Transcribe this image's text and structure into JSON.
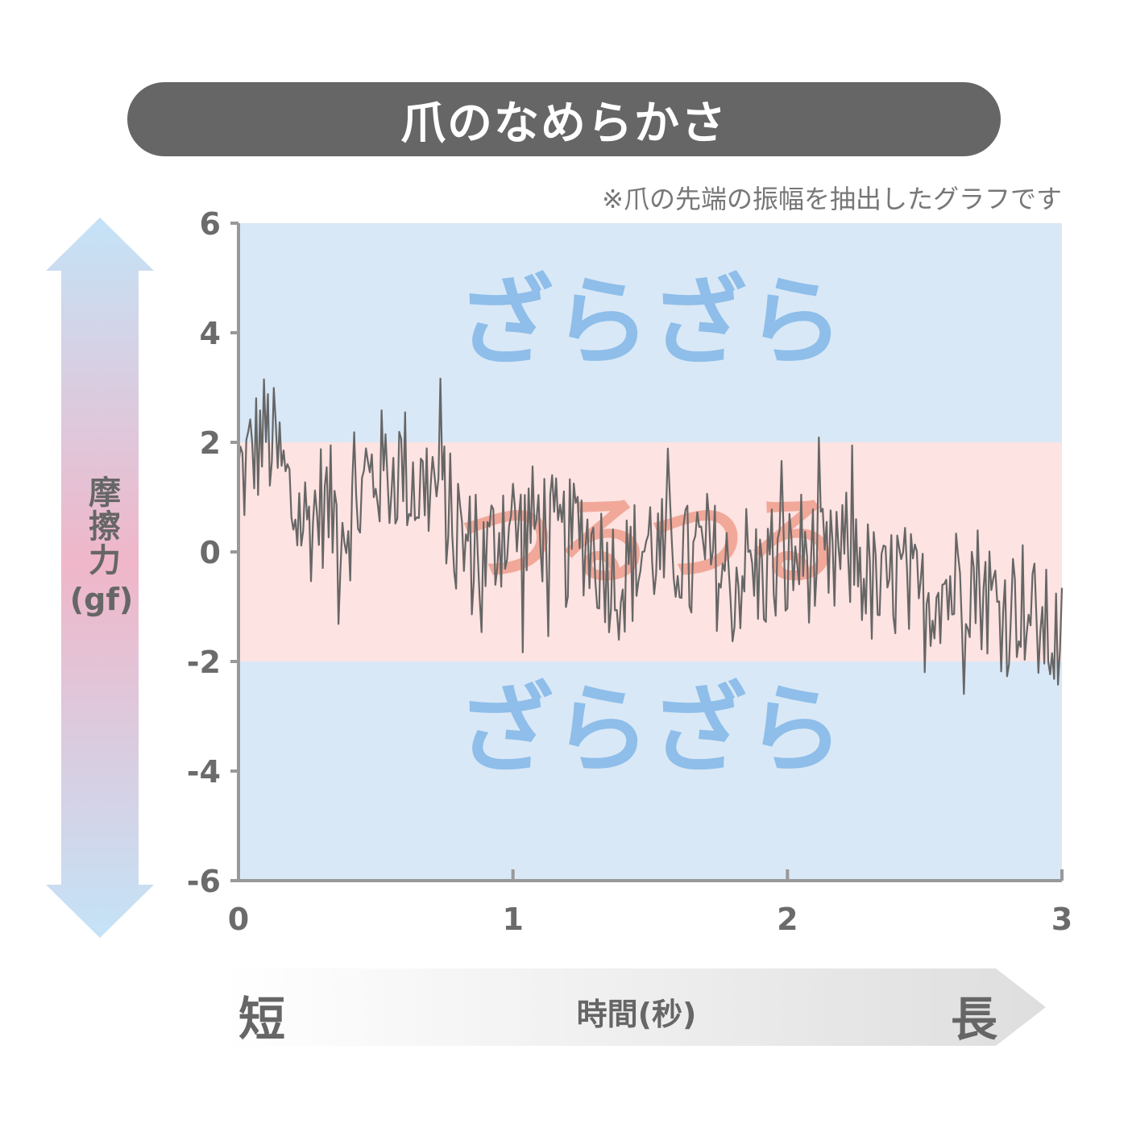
{
  "title": "爪のなめらかさ",
  "note": "※爪の先端の振幅を抽出したグラフです",
  "y_axis_label": "摩擦力",
  "y_axis_unit": "(gf)",
  "x_axis_label": "時間(秒)",
  "x_axis_short": "短",
  "x_axis_long": "長",
  "regions": {
    "rough_label": "ざらざら",
    "smooth_label": "つるつる",
    "rough_color": "#d9e8f7",
    "smooth_color": "#fde3e1",
    "rough_text_color": "#8ebee9",
    "smooth_text_color": "#ef9e8c"
  },
  "colors": {
    "line": "#666666",
    "axis": "#999999",
    "arrow_top": "#c4e3f7",
    "arrow_mid": "#f0b6c9",
    "x_arrow_start": "#ffffff",
    "x_arrow_end": "#dedede"
  },
  "chart_data": {
    "type": "line",
    "title": "爪のなめらかさ",
    "xlabel": "時間(秒)",
    "ylabel": "摩擦力(gf)",
    "xlim": [
      0,
      3
    ],
    "ylim": [
      -6,
      6
    ],
    "x_ticks": [
      0,
      1,
      2,
      3
    ],
    "y_ticks": [
      6,
      4,
      2,
      0,
      -2,
      -4,
      -6
    ],
    "bands": [
      {
        "label": "ざらざら",
        "from": 2,
        "to": 6
      },
      {
        "label": "つるつる",
        "from": -2,
        "to": 2
      },
      {
        "label": "ざらざら",
        "from": -6,
        "to": -2
      }
    ],
    "grid": false,
    "series": [
      {
        "x": [
          0,
          0.05,
          0.1,
          0.15,
          0.2,
          0.25,
          0.3,
          0.35,
          0.4,
          0.45,
          0.5,
          0.55,
          0.6,
          0.65,
          0.7,
          0.75,
          0.8,
          0.85,
          0.9,
          0.95,
          1.0,
          1.05,
          1.1,
          1.15,
          1.2,
          1.25,
          1.3,
          1.35,
          1.4,
          1.45,
          1.5,
          1.55,
          1.6,
          1.65,
          1.7,
          1.75,
          1.8,
          1.85,
          1.9,
          1.95,
          2.0,
          2.05,
          2.1,
          2.15,
          2.2,
          2.25,
          2.3,
          2.35,
          2.4,
          2.45,
          2.5,
          2.55,
          2.6,
          2.65,
          2.7,
          2.75,
          2.8,
          2.85,
          2.9,
          2.95,
          3.0
        ],
        "values": [
          1.2,
          1.8,
          2.2,
          1.6,
          0.8,
          0.5,
          0.9,
          0.7,
          0.6,
          1.0,
          1.5,
          1.4,
          1.6,
          1.1,
          1.3,
          1.0,
          0.2,
          0.0,
          -0.2,
          0.4,
          0.5,
          0.3,
          0.6,
          0.2,
          0.1,
          0.4,
          0.0,
          -0.3,
          -0.5,
          -0.1,
          0.2,
          -0.2,
          0.1,
          -0.4,
          0.0,
          -0.3,
          -0.6,
          -0.2,
          -0.5,
          -0.1,
          -0.3,
          0.0,
          -0.2,
          -0.4,
          -0.1,
          0.0,
          -0.6,
          -0.9,
          -0.4,
          -0.8,
          -1.0,
          -0.5,
          -0.7,
          -0.3,
          -0.6,
          -0.9,
          -1.1,
          -0.8,
          -1.3,
          -1.5,
          -1.7
        ]
      }
    ]
  }
}
